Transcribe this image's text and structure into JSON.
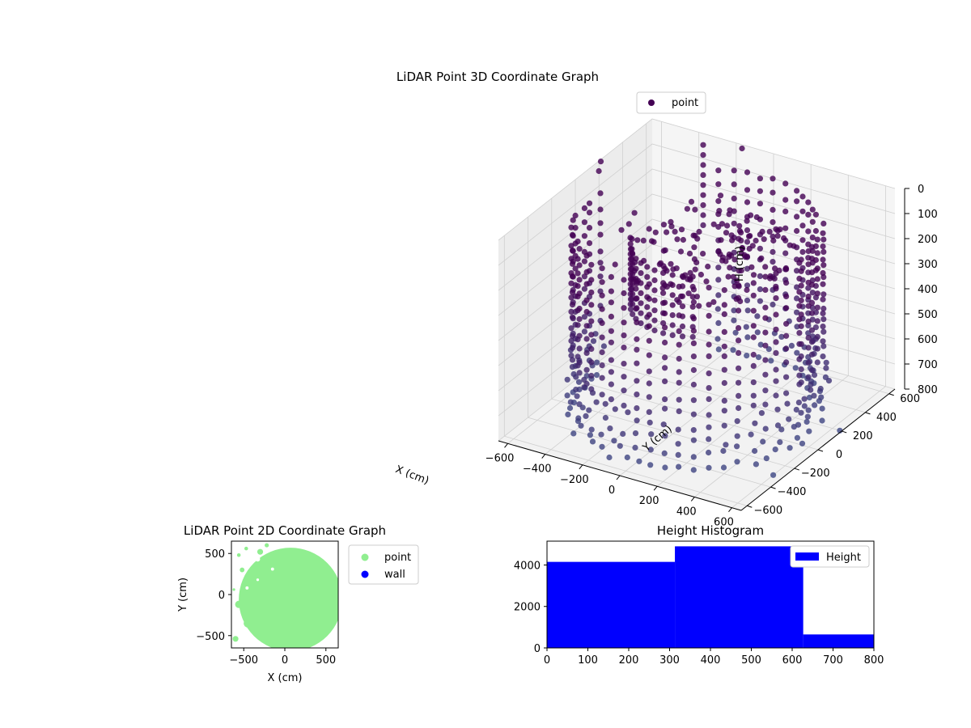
{
  "chart_data": [
    {
      "type": "scatter",
      "projection": "3d",
      "title": "LiDAR Point 3D Coordinate Graph",
      "xlabel": "X (cm)",
      "ylabel": "Y (cm)",
      "zlabel": "H (cm)",
      "xlim": [
        -650,
        650
      ],
      "ylim": [
        -650,
        650
      ],
      "zlim": [
        800,
        0
      ],
      "x_ticks": [
        "−600",
        "−400",
        "−200",
        "0",
        "200",
        "400",
        "600"
      ],
      "y_ticks": [
        "−600",
        "−400",
        "−200",
        "0",
        "200",
        "400",
        "600"
      ],
      "z_ticks": [
        "0",
        "100",
        "200",
        "300",
        "400",
        "500",
        "600",
        "700",
        "800"
      ],
      "x_tick_values": [
        -600,
        -400,
        -200,
        0,
        200,
        400,
        600
      ],
      "y_tick_values": [
        -600,
        -400,
        -200,
        0,
        200,
        400,
        600
      ],
      "z_tick_values": [
        0,
        100,
        200,
        300,
        400,
        500,
        600,
        700,
        800
      ],
      "grid": true,
      "legend": {
        "position": "top-right",
        "entries": [
          "point"
        ]
      },
      "series": [
        {
          "name": "point",
          "color": "#440154",
          "colormap": "viridis (by height)",
          "wall": {
            "radius": 560,
            "h_min": 0,
            "h_max": 800,
            "gap_deg": [
              118,
              170
            ]
          },
          "outliers": [
            {
              "x": -640,
              "y": 200,
              "h": 0
            },
            {
              "x": -600,
              "y": 120,
              "h": 0
            },
            {
              "x": -150,
              "y": 620,
              "h": 0
            },
            {
              "x": 600,
              "y": -300,
              "h": 800
            },
            {
              "x": 640,
              "y": 200,
              "h": 800
            }
          ]
        }
      ]
    },
    {
      "type": "scatter",
      "title": "LiDAR Point 2D Coordinate Graph",
      "xlabel": "X (cm)",
      "ylabel": "Y (cm)",
      "xlim": [
        -650,
        650
      ],
      "ylim": [
        -650,
        650
      ],
      "x_ticks": [
        "−500",
        "0",
        "500"
      ],
      "y_ticks": [
        "−500",
        "0",
        "500"
      ],
      "x_tick_values": [
        -500,
        0,
        500
      ],
      "y_tick_values": [
        -500,
        0,
        500
      ],
      "grid": false,
      "legend": {
        "position": "outside-right",
        "entries": [
          "point",
          "wall"
        ]
      },
      "series": [
        {
          "name": "point",
          "color": "#90ee90"
        },
        {
          "name": "wall",
          "color": "#0000ff",
          "values": []
        }
      ]
    },
    {
      "type": "bar",
      "title": "Height Histogram",
      "xlim": [
        0,
        800
      ],
      "ylim": [
        0,
        5150
      ],
      "x_ticks": [
        "0",
        "100",
        "200",
        "300",
        "400",
        "500",
        "600",
        "700",
        "800"
      ],
      "y_ticks": [
        "0",
        "2000",
        "4000"
      ],
      "x_tick_values": [
        0,
        100,
        200,
        300,
        400,
        500,
        600,
        700,
        800
      ],
      "y_tick_values": [
        0,
        2000,
        4000
      ],
      "legend": {
        "position": "top-right",
        "entries": [
          "Height"
        ]
      },
      "series": [
        {
          "name": "Height",
          "color": "#0000ff",
          "bins": [
            {
              "x0": 0,
              "x1": 313,
              "count": 4150
            },
            {
              "x0": 313,
              "x1": 627,
              "count": 4900
            },
            {
              "x0": 627,
              "x1": 800,
              "count": 650
            }
          ]
        }
      ]
    }
  ]
}
